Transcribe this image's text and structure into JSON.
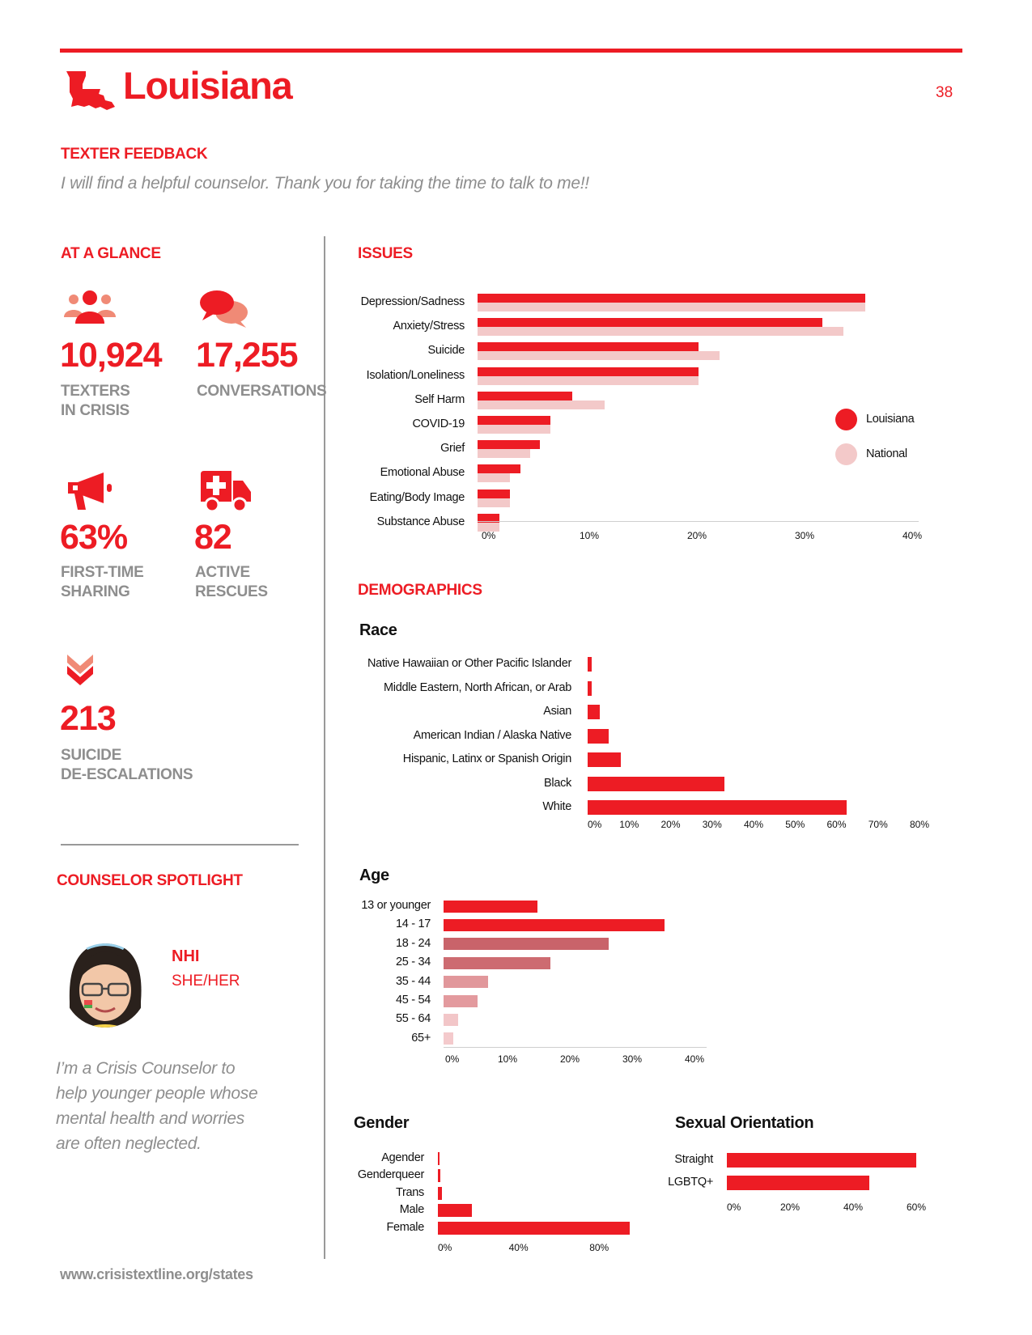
{
  "header": {
    "state_name": "Louisiana",
    "page_number": "38"
  },
  "feedback": {
    "title": "TEXTER FEEDBACK",
    "quote": "I will find a helpful counselor. Thank you for taking the time to talk to me!!"
  },
  "glance": {
    "title": "AT A GLANCE",
    "stats": [
      {
        "value": "10,924",
        "label1": "TEXTERS",
        "label2": "IN CRISIS",
        "icon": "people-icon"
      },
      {
        "value": "17,255",
        "label1": "CONVERSATIONS",
        "label2": "",
        "icon": "chat-bubbles-icon"
      },
      {
        "value": "63%",
        "label1": "FIRST-TIME",
        "label2": "SHARING",
        "icon": "megaphone-icon"
      },
      {
        "value": "82",
        "label1": "ACTIVE",
        "label2": "RESCUES",
        "icon": "ambulance-icon"
      },
      {
        "value": "213",
        "label1": "SUICIDE",
        "label2": "DE-ESCALATIONS",
        "icon": "double-chevron-down-icon"
      }
    ]
  },
  "spotlight": {
    "title": "COUNSELOR SPOTLIGHT",
    "name": "NHI",
    "pronouns": "SHE/HER",
    "quote_lines": [
      "I’m a Crisis Counselor to",
      "help younger people whose",
      "mental health and worries",
      "are often neglected."
    ]
  },
  "footer": {
    "url": "www.crisistextline.org/states"
  },
  "colors": {
    "accent": "#ed1c24",
    "national": "#f3c9c9",
    "grey_text": "#8e8e8e"
  },
  "sections": {
    "issues_title": "ISSUES",
    "demographics_title": "DEMOGRAPHICS"
  },
  "chart_data": [
    {
      "id": "issues",
      "type": "bar",
      "orientation": "horizontal",
      "categories": [
        "Depression/Sadness",
        "Anxiety/Stress",
        "Suicide",
        "Isolation/Loneliness",
        "Self Harm",
        "COVID-19",
        "Grief",
        "Emotional Abuse",
        "Eating/Body Image",
        "Substance Abuse"
      ],
      "series": [
        {
          "name": "Louisiana",
          "values": [
            36,
            32,
            20.5,
            20.5,
            8.8,
            6.8,
            5.8,
            4,
            3,
            2
          ],
          "color": "#ed1c24"
        },
        {
          "name": "National",
          "values": [
            36,
            34,
            22.5,
            20.5,
            11.8,
            6.8,
            4.9,
            3,
            3,
            2
          ],
          "color": "#f3c9c9"
        }
      ],
      "xlim": [
        0,
        40
      ],
      "ticks": [
        "0%",
        "10%",
        "20%",
        "30%",
        "40%"
      ],
      "legend_placement": "right"
    },
    {
      "id": "race",
      "type": "bar",
      "orientation": "horizontal",
      "title": "Race",
      "categories": [
        "Native Hawaiian or Other Pacific Islander",
        "Middle Eastern, North African, or Arab",
        "Asian",
        "American Indian / Alaska Native",
        "Hispanic, Latinx or Spanish Origin",
        "Black",
        "White"
      ],
      "values": [
        1,
        1,
        3,
        5,
        8,
        33,
        62.5
      ],
      "xlim": [
        0,
        80
      ],
      "ticks": [
        "0%",
        "10%",
        "20%",
        "30%",
        "40%",
        "50%",
        "60%",
        "70%",
        "80%"
      ]
    },
    {
      "id": "age",
      "type": "bar",
      "orientation": "horizontal",
      "title": "Age",
      "categories": [
        "13 or younger",
        "14 - 17",
        "18 - 24",
        "25 - 34",
        "35 - 44",
        "45 - 54",
        "55 - 64",
        "65+"
      ],
      "values": [
        15,
        35.5,
        26.5,
        17.2,
        7.2,
        5.4,
        2.4,
        1.6
      ],
      "colors": [
        "#ed1c24",
        "#ed1c24",
        "#c9636a",
        "#cd6b71",
        "#e1979b",
        "#e39a9e",
        "#f2c6c8",
        "#f4cacc"
      ],
      "xlim": [
        0,
        40
      ],
      "ticks": [
        "0%",
        "10%",
        "20%",
        "30%",
        "40%"
      ]
    },
    {
      "id": "gender",
      "type": "bar",
      "orientation": "horizontal",
      "title": "Gender",
      "categories": [
        "Agender",
        "Genderqueer",
        "Trans",
        "Male",
        "Female"
      ],
      "values": [
        0.5,
        1.2,
        2,
        17,
        95
      ],
      "xlim": [
        0,
        100
      ],
      "ticks": [
        {
          "label": "0%",
          "value": 0
        },
        {
          "label": "40%",
          "value": 40
        },
        {
          "label": "80%",
          "value": 80
        }
      ]
    },
    {
      "id": "orientation",
      "type": "bar",
      "orientation": "horizontal",
      "title": "Sexual Orientation",
      "categories": [
        "Straight",
        "LGBTQ+"
      ],
      "values": [
        60,
        45
      ],
      "xlim": [
        0,
        60
      ],
      "ticks": [
        "0%",
        "20%",
        "40%",
        "60%"
      ]
    }
  ]
}
